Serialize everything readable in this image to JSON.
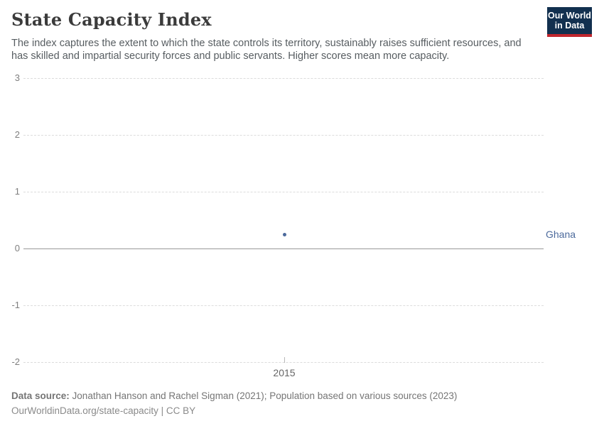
{
  "header": {
    "title": "State Capacity Index",
    "subtitle": "The index captures the extent to which the state controls its territory, sustainably raises sufficient resources, and has skilled and impartial security forces and public servants. Higher scores mean more capacity."
  },
  "logo": {
    "line1": "Our World",
    "line2": "in Data",
    "bg_color": "#12304f",
    "accent_color": "#c0262d"
  },
  "chart_data": {
    "type": "scatter",
    "title": "State Capacity Index",
    "xlabel": "",
    "ylabel": "",
    "ylim": [
      -2,
      3
    ],
    "yticks": [
      3,
      2,
      1,
      0,
      -1,
      -2
    ],
    "xticks": [
      2015
    ],
    "grid": "horizontal-dashed",
    "zero_line": true,
    "legend_position": "right-of-last-point",
    "series": [
      {
        "name": "Ghana",
        "color": "#4c6a9c",
        "points": [
          {
            "x": 2015,
            "y": 0.25
          }
        ]
      }
    ]
  },
  "footer": {
    "datasource_label": "Data source:",
    "datasource_text": "Jonathan Hanson and Rachel Sigman (2021); Population based on various sources (2023)",
    "url_text": "OurWorldinData.org/state-capacity",
    "separator": " | ",
    "license_text": "CC BY"
  }
}
